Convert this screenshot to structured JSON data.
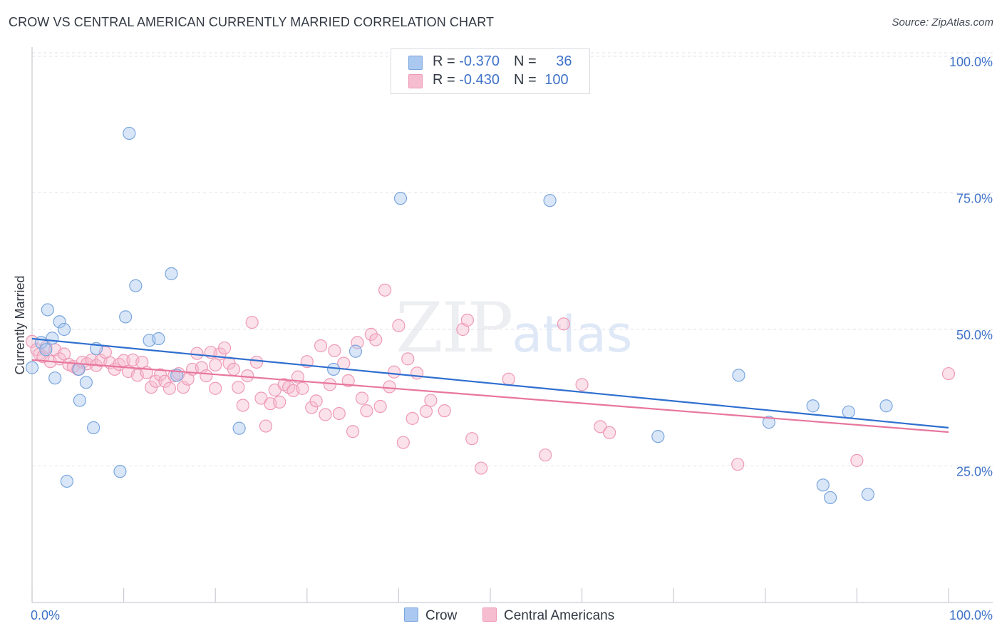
{
  "title": "CROW VS CENTRAL AMERICAN CURRENTLY MARRIED CORRELATION CHART",
  "source": "Source: ZipAtlas.com",
  "watermark": {
    "zip": "ZIP",
    "atlas": "atlas"
  },
  "legend": {
    "crow": {
      "r_label": "R = ",
      "r_value": "-0.370",
      "n_label": "N = ",
      "n_value": "36"
    },
    "central": {
      "r_label": "R = ",
      "r_value": "-0.430",
      "n_label": "N = ",
      "n_value": "100"
    }
  },
  "bottom_legend": {
    "crow": "Crow",
    "central": "Central Americans"
  },
  "colors": {
    "crow_fill": "#aac8f0",
    "crow_stroke": "#7aa6de",
    "crow_line": "#2f6fcf",
    "central_fill": "#f6bccf",
    "central_stroke": "#ee9ab6",
    "central_line": "#e8769e",
    "tick": "#3f73c8",
    "grid": "#dfe2e8"
  },
  "chart_data": {
    "type": "scatter",
    "title": "CROW VS CENTRAL AMERICAN CURRENTLY MARRIED CORRELATION CHART",
    "xlabel": "",
    "ylabel": "Currently Married",
    "xlim": [
      0,
      100
    ],
    "ylim": [
      0,
      100
    ],
    "x_tick_labels": [
      "0.0%",
      "100.0%"
    ],
    "y_ticks": [
      25,
      50,
      75,
      100
    ],
    "y_tick_labels": [
      "25.0%",
      "50.0%",
      "75.0%",
      "100.0%"
    ],
    "grid": true,
    "series": [
      {
        "name": "Crow",
        "trend": {
          "x": [
            0,
            100
          ],
          "y": [
            48.3,
            32.0
          ]
        },
        "points": [
          [
            0.0,
            43.0
          ],
          [
            1.0,
            47.6
          ],
          [
            1.7,
            53.6
          ],
          [
            1.5,
            46.3
          ],
          [
            2.2,
            48.4
          ],
          [
            2.5,
            41.1
          ],
          [
            3.0,
            51.4
          ],
          [
            3.5,
            50.0
          ],
          [
            3.8,
            22.2
          ],
          [
            5.1,
            42.7
          ],
          [
            5.2,
            37.0
          ],
          [
            5.9,
            40.3
          ],
          [
            6.7,
            32.0
          ],
          [
            7.0,
            46.5
          ],
          [
            9.6,
            24.0
          ],
          [
            10.2,
            52.3
          ],
          [
            10.6,
            85.9
          ],
          [
            11.3,
            58.0
          ],
          [
            12.8,
            48.0
          ],
          [
            13.8,
            48.3
          ],
          [
            15.2,
            60.2
          ],
          [
            15.8,
            41.6
          ],
          [
            22.6,
            31.9
          ],
          [
            32.9,
            42.7
          ],
          [
            35.3,
            46.0
          ],
          [
            40.2,
            74.0
          ],
          [
            56.5,
            73.6
          ],
          [
            68.3,
            30.4
          ],
          [
            77.1,
            41.6
          ],
          [
            80.4,
            33.0
          ],
          [
            85.2,
            36.0
          ],
          [
            86.3,
            21.5
          ],
          [
            87.1,
            19.2
          ],
          [
            89.1,
            34.9
          ],
          [
            91.2,
            19.8
          ],
          [
            93.2,
            36.0
          ]
        ]
      },
      {
        "name": "Central Americans",
        "trend": {
          "x": [
            0,
            100
          ],
          "y": [
            44.4,
            31.2
          ]
        },
        "points": [
          [
            0.0,
            47.8
          ],
          [
            0.5,
            46.3
          ],
          [
            0.8,
            45.5
          ],
          [
            1.2,
            45.0
          ],
          [
            1.5,
            46.7
          ],
          [
            2.0,
            44.1
          ],
          [
            2.5,
            46.3
          ],
          [
            3.0,
            44.6
          ],
          [
            3.5,
            45.5
          ],
          [
            4.0,
            43.6
          ],
          [
            4.5,
            43.2
          ],
          [
            5.0,
            42.7
          ],
          [
            5.5,
            44.0
          ],
          [
            6.0,
            43.7
          ],
          [
            6.5,
            44.4
          ],
          [
            7.0,
            43.4
          ],
          [
            7.5,
            44.3
          ],
          [
            8.0,
            45.8
          ],
          [
            8.5,
            43.9
          ],
          [
            9.0,
            42.7
          ],
          [
            9.5,
            43.6
          ],
          [
            10.0,
            44.3
          ],
          [
            10.5,
            42.3
          ],
          [
            11.0,
            44.4
          ],
          [
            11.5,
            41.6
          ],
          [
            12.0,
            44.0
          ],
          [
            12.5,
            42.1
          ],
          [
            13.0,
            39.4
          ],
          [
            13.5,
            40.5
          ],
          [
            14.0,
            41.7
          ],
          [
            14.5,
            40.5
          ],
          [
            15.0,
            39.2
          ],
          [
            15.5,
            41.5
          ],
          [
            16.0,
            41.9
          ],
          [
            16.5,
            39.4
          ],
          [
            17.0,
            40.9
          ],
          [
            17.5,
            42.7
          ],
          [
            18.0,
            45.6
          ],
          [
            18.5,
            43.0
          ],
          [
            19.0,
            41.5
          ],
          [
            19.5,
            45.8
          ],
          [
            20.0,
            39.2
          ],
          [
            20.5,
            45.5
          ],
          [
            21.0,
            46.6
          ],
          [
            21.5,
            43.8
          ],
          [
            22.0,
            42.7
          ],
          [
            22.5,
            39.4
          ],
          [
            23.0,
            36.1
          ],
          [
            23.5,
            41.5
          ],
          [
            24.0,
            51.3
          ],
          [
            24.5,
            44.0
          ],
          [
            25.0,
            37.4
          ],
          [
            25.5,
            32.3
          ],
          [
            26.0,
            36.4
          ],
          [
            26.5,
            38.9
          ],
          [
            27.0,
            36.7
          ],
          [
            27.5,
            39.9
          ],
          [
            28.0,
            39.4
          ],
          [
            28.5,
            38.8
          ],
          [
            29.0,
            41.3
          ],
          [
            29.5,
            39.2
          ],
          [
            30.0,
            44.1
          ],
          [
            30.5,
            35.7
          ],
          [
            31.0,
            36.9
          ],
          [
            31.5,
            47.0
          ],
          [
            32.0,
            34.4
          ],
          [
            32.5,
            39.9
          ],
          [
            33.0,
            46.1
          ],
          [
            33.5,
            34.6
          ],
          [
            34.0,
            43.8
          ],
          [
            34.5,
            40.6
          ],
          [
            35.0,
            31.3
          ],
          [
            35.5,
            47.6
          ],
          [
            36.0,
            37.4
          ],
          [
            36.5,
            35.1
          ],
          [
            37.0,
            49.1
          ],
          [
            37.5,
            48.1
          ],
          [
            38.0,
            35.9
          ],
          [
            38.5,
            57.2
          ],
          [
            39.0,
            39.5
          ],
          [
            39.5,
            42.2
          ],
          [
            40.0,
            50.7
          ],
          [
            40.5,
            29.3
          ],
          [
            41.0,
            44.6
          ],
          [
            41.5,
            33.7
          ],
          [
            42.0,
            42.0
          ],
          [
            43.0,
            35.0
          ],
          [
            43.5,
            37.0
          ],
          [
            45.0,
            35.1
          ],
          [
            47.0,
            50.0
          ],
          [
            47.5,
            51.7
          ],
          [
            48.0,
            30.0
          ],
          [
            49.0,
            24.6
          ],
          [
            52.0,
            40.9
          ],
          [
            56.0,
            27.0
          ],
          [
            58.0,
            51.0
          ],
          [
            60.0,
            39.9
          ],
          [
            62.0,
            32.2
          ],
          [
            63.0,
            31.1
          ],
          [
            77.0,
            25.3
          ]
        ],
        "extra_points": [
          [
            90.0,
            26.0
          ],
          [
            100.0,
            41.9
          ],
          [
            20.0,
            43.5
          ]
        ]
      }
    ]
  }
}
